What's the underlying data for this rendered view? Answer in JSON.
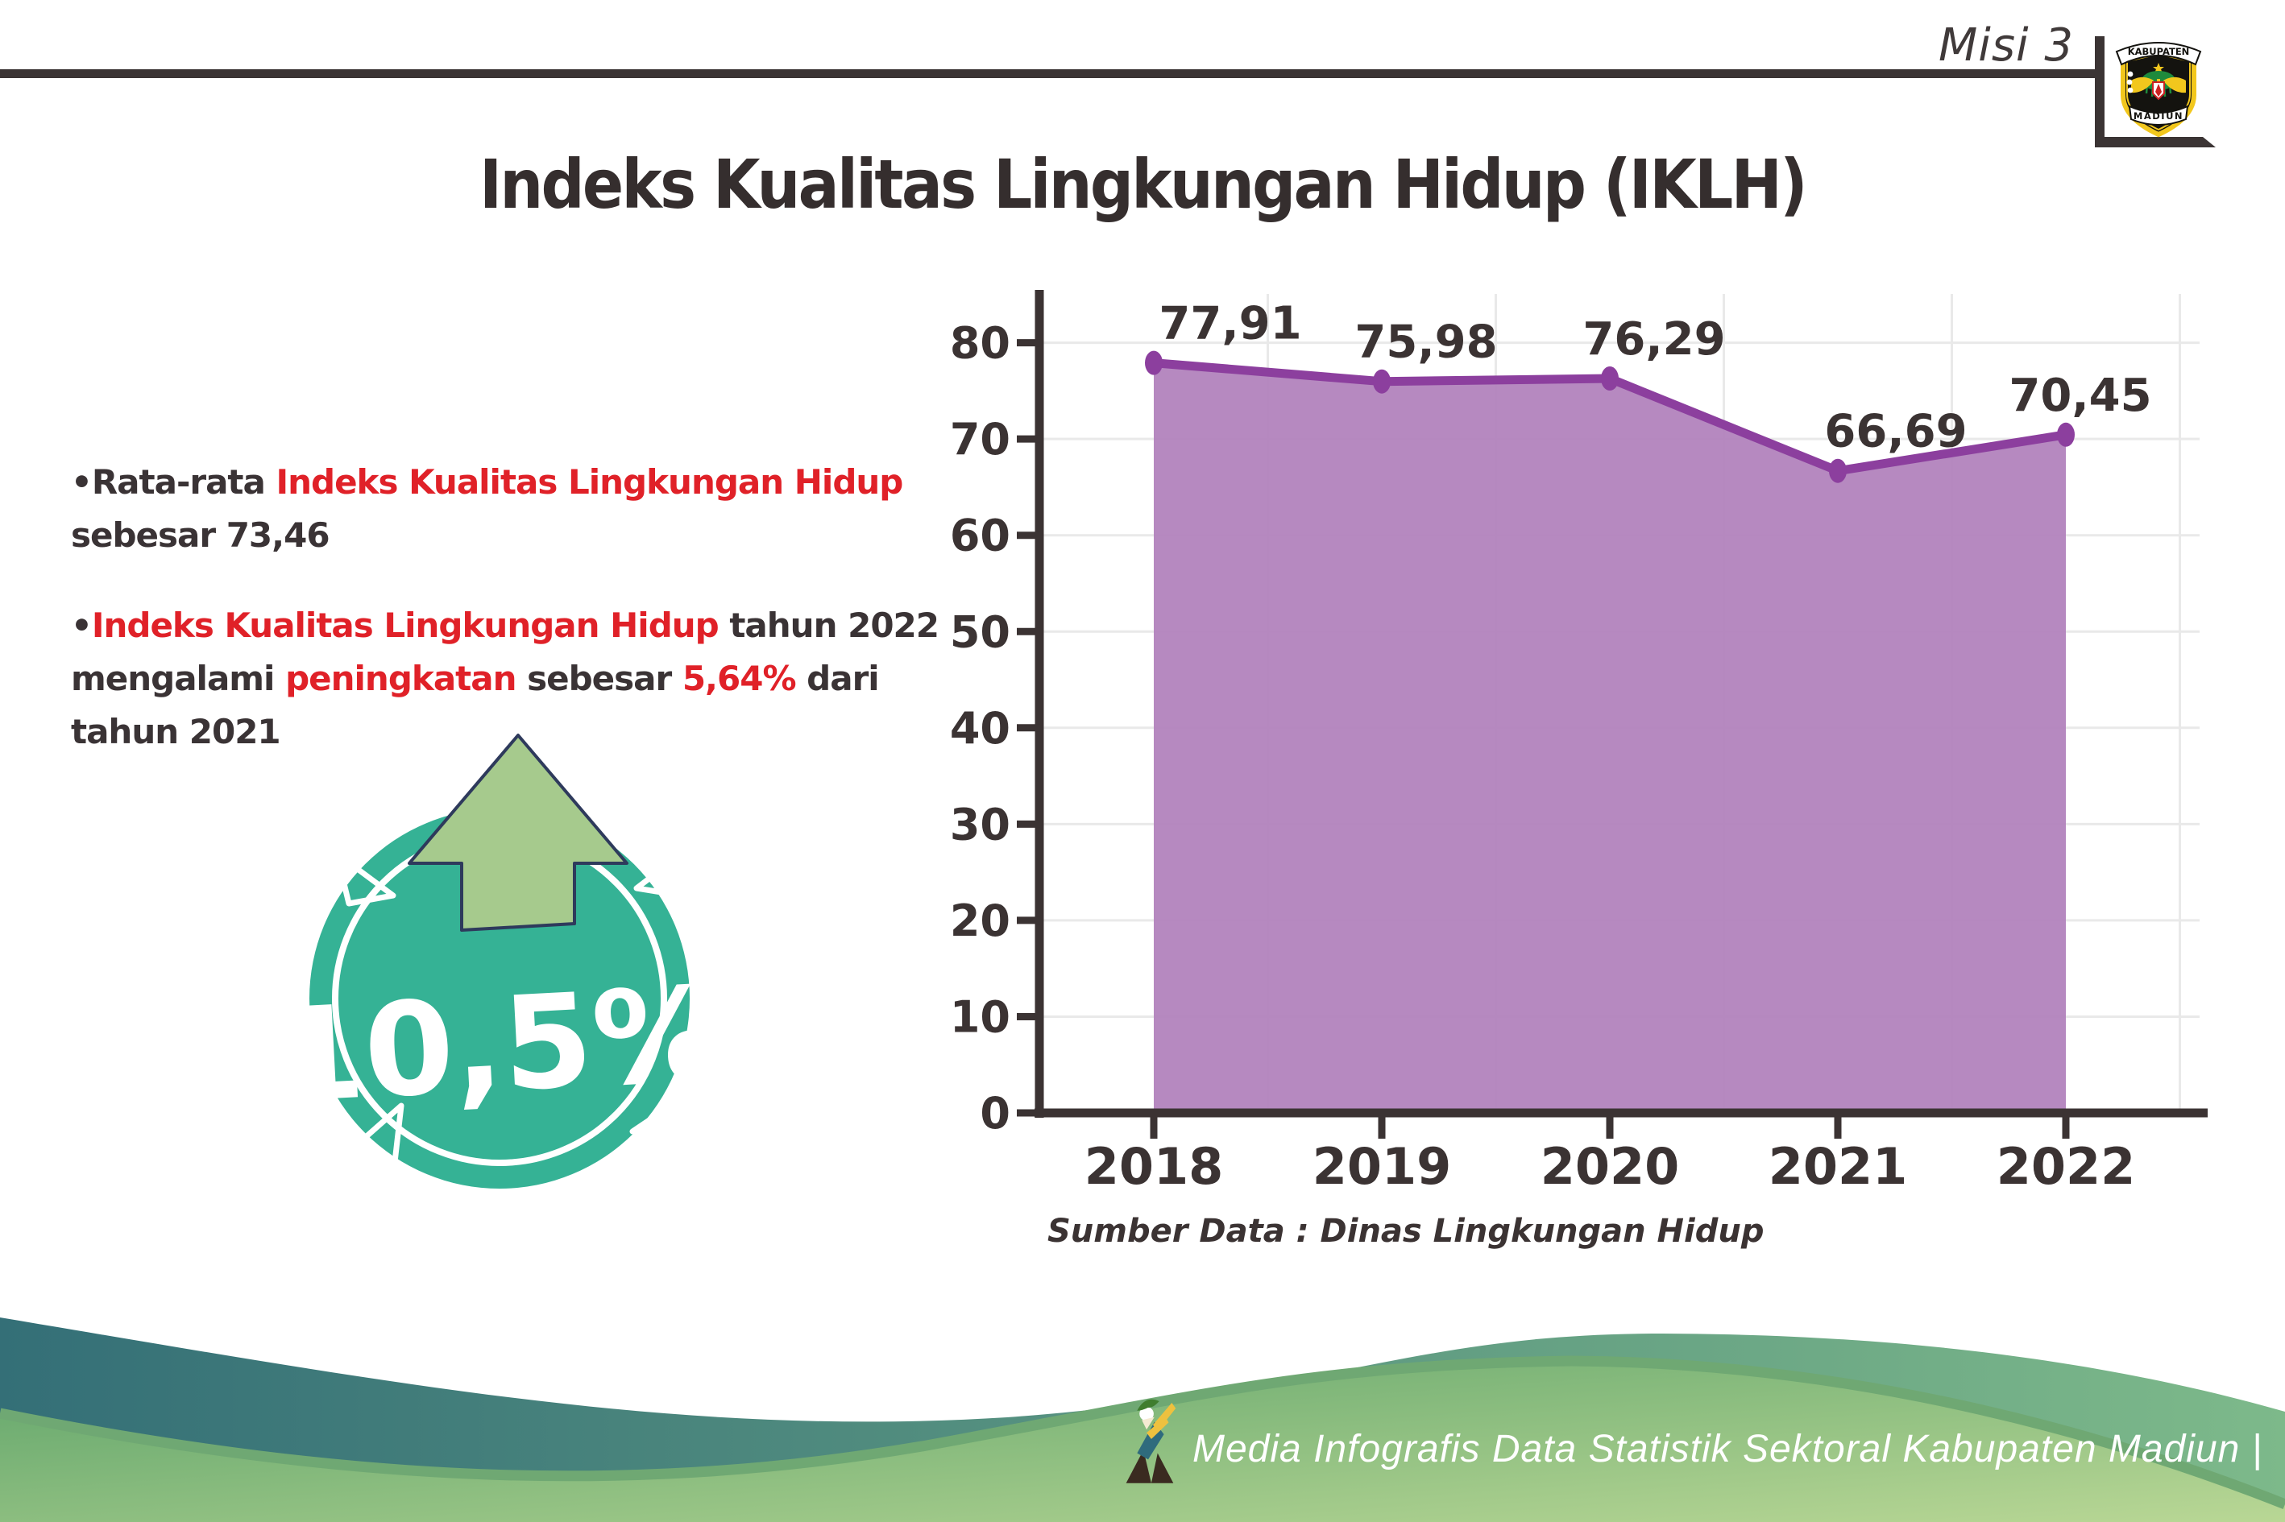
{
  "page_title": "Indeks Kualitas Lingkungan Hidup (IKLH)",
  "colors": {
    "accent_red": "#e02128",
    "text_dark": "#3a3335",
    "axis_dark": "#3b3333",
    "gridline": "#e9e9e9",
    "chart_area_fill": "#b283bd",
    "chart_line": "#8c3f9e",
    "badge_teal": "#35b295",
    "badge_arrow_green": "#a6ca8d",
    "badge_arrow_outline": "#2e3a5c",
    "wave_teal_dark": "#346f77",
    "wave_teal_light": "#7db98a",
    "wave_green_dark": "#5fa46a",
    "wave_green_light": "#b9d795",
    "wave_green_edge": "#6fa873"
  },
  "header": {
    "misi_label": "Misi 3",
    "title": "Indeks Kualitas Lingkungan Hidup (IKLH)",
    "logo": {
      "top_banner": "KABUPATEN",
      "bottom_banner": "MADIUN"
    }
  },
  "bullets": [
    {
      "lines": [
        [
          {
            "t": "•Rata-rata ",
            "c": "dark"
          },
          {
            "t": "Indeks Kualitas Lingkungan Hidup",
            "c": "red"
          }
        ],
        [
          {
            "t": "sebesar 73,46",
            "c": "dark"
          }
        ]
      ]
    },
    {
      "lines": [
        [
          {
            "t": "•",
            "c": "dark"
          },
          {
            "t": "Indeks Kualitas Lingkungan Hidup",
            "c": "red"
          },
          {
            "t": " tahun 2022",
            "c": "dark"
          }
        ],
        [
          {
            "t": "mengalami ",
            "c": "dark"
          },
          {
            "t": "peningkatan",
            "c": "red"
          },
          {
            "t": " sebesar ",
            "c": "dark"
          },
          {
            "t": "5,64%",
            "c": "red"
          },
          {
            "t": " dari",
            "c": "dark"
          }
        ],
        [
          {
            "t": "tahun 2021",
            "c": "dark"
          }
        ]
      ]
    }
  ],
  "badge": {
    "value_label": "10,5%"
  },
  "chart_data": {
    "type": "area",
    "title": "",
    "categories": [
      "2018",
      "2019",
      "2020",
      "2021",
      "2022"
    ],
    "values": [
      77.91,
      75.98,
      76.29,
      66.69,
      70.45
    ],
    "value_labels": [
      "77,91",
      "75,98",
      "76,29",
      "66,69",
      "70,45"
    ],
    "xlabel": "",
    "ylabel": "",
    "ylim": [
      0,
      85
    ],
    "yticks": [
      0,
      10,
      20,
      30,
      40,
      50,
      60,
      70,
      80
    ],
    "grid": true,
    "legend": false,
    "source_note": "Sumber Data : Dinas Lingkungan Hidup"
  },
  "footer": {
    "credit": "Media Infografis Data Statistik Sektoral Kabupaten Madiun |"
  }
}
